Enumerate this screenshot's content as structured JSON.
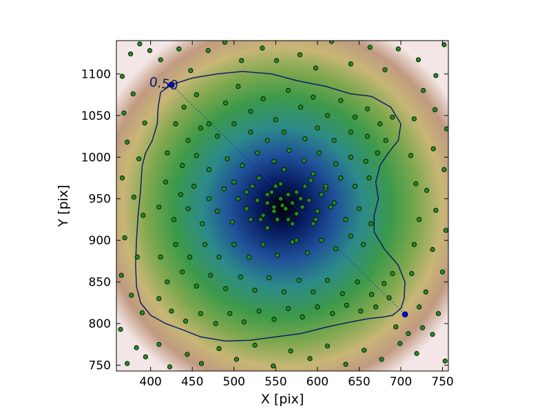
{
  "chart_data": {
    "type": "scatter",
    "xlabel": "X [pix]",
    "ylabel": "Y [pix]",
    "xlim": [
      359,
      757
    ],
    "ylim": [
      743,
      1140
    ],
    "xticks": [
      400,
      450,
      500,
      550,
      600,
      650,
      700,
      750
    ],
    "yticks": [
      750,
      800,
      850,
      900,
      950,
      1000,
      1050,
      1100
    ],
    "grid": false,
    "legend": "none",
    "background_heatmap": {
      "center": [
        558,
        940
      ],
      "colormap": "gist_earth (black-blue-green-tan-white)"
    },
    "contour": {
      "level_label": "0.50",
      "label_position": [
        415,
        1083
      ],
      "color": "#0a1f66",
      "points": [
        [
          425,
          1087
        ],
        [
          450,
          1095
        ],
        [
          480,
          1100
        ],
        [
          510,
          1103
        ],
        [
          545,
          1100
        ],
        [
          575,
          1092
        ],
        [
          610,
          1085
        ],
        [
          640,
          1076
        ],
        [
          665,
          1073
        ],
        [
          688,
          1060
        ],
        [
          700,
          1040
        ],
        [
          697,
          1020
        ],
        [
          685,
          1005
        ],
        [
          675,
          990
        ],
        [
          670,
          970
        ],
        [
          673,
          950
        ],
        [
          668,
          930
        ],
        [
          668,
          910
        ],
        [
          680,
          890
        ],
        [
          697,
          870
        ],
        [
          705,
          850
        ],
        [
          704,
          830
        ],
        [
          700,
          818
        ],
        [
          690,
          810
        ],
        [
          680,
          808
        ],
        [
          662,
          806
        ],
        [
          640,
          802
        ],
        [
          612,
          796
        ],
        [
          580,
          788
        ],
        [
          550,
          784
        ],
        [
          520,
          780
        ],
        [
          490,
          779
        ],
        [
          460,
          784
        ],
        [
          440,
          792
        ],
        [
          418,
          800
        ],
        [
          400,
          810
        ],
        [
          388,
          825
        ],
        [
          383,
          845
        ],
        [
          382,
          870
        ],
        [
          383,
          900
        ],
        [
          385,
          930
        ],
        [
          388,
          960
        ],
        [
          390,
          990
        ],
        [
          394,
          1005
        ],
        [
          402,
          1020
        ],
        [
          408,
          1040
        ],
        [
          409,
          1060
        ],
        [
          412,
          1078
        ],
        [
          425,
          1087
        ]
      ]
    },
    "endpoints": [
      {
        "x": 425,
        "y": 1087
      },
      {
        "x": 705,
        "y": 811
      }
    ],
    "scatter_color": "#228b22",
    "endpoint_color": "#0000ff",
    "scatter_points": [
      [
        366,
        1097
      ],
      [
        376,
        1124
      ],
      [
        387,
        1136
      ],
      [
        399,
        1128
      ],
      [
        412,
        1117
      ],
      [
        434,
        1130
      ],
      [
        448,
        1104
      ],
      [
        469,
        1128
      ],
      [
        489,
        1138
      ],
      [
        509,
        1116
      ],
      [
        534,
        1131
      ],
      [
        551,
        1116
      ],
      [
        579,
        1123
      ],
      [
        598,
        1107
      ],
      [
        617,
        1139
      ],
      [
        640,
        1112
      ],
      [
        663,
        1132
      ],
      [
        681,
        1105
      ],
      [
        697,
        1130
      ],
      [
        721,
        1117
      ],
      [
        742,
        1098
      ],
      [
        752,
        1135
      ],
      [
        368,
        1053
      ],
      [
        379,
        1076
      ],
      [
        393,
        1041
      ],
      [
        372,
        1018
      ],
      [
        386,
        998
      ],
      [
        366,
        975
      ],
      [
        380,
        952
      ],
      [
        391,
        930
      ],
      [
        369,
        903
      ],
      [
        384,
        880
      ],
      [
        365,
        858
      ],
      [
        377,
        834
      ],
      [
        390,
        813
      ],
      [
        364,
        793
      ],
      [
        383,
        771
      ],
      [
        372,
        752
      ],
      [
        394,
        760
      ],
      [
        410,
        775
      ],
      [
        423,
        748
      ],
      [
        444,
        763
      ],
      [
        461,
        752
      ],
      [
        482,
        770
      ],
      [
        503,
        757
      ],
      [
        525,
        774
      ],
      [
        547,
        749
      ],
      [
        568,
        767
      ],
      [
        591,
        758
      ],
      [
        612,
        773
      ],
      [
        634,
        751
      ],
      [
        656,
        768
      ],
      [
        677,
        757
      ],
      [
        699,
        776
      ],
      [
        719,
        764
      ],
      [
        738,
        787
      ],
      [
        753,
        755
      ],
      [
        745,
        812
      ],
      [
        730,
        838
      ],
      [
        750,
        862
      ],
      [
        738,
        889
      ],
      [
        754,
        912
      ],
      [
        742,
        936
      ],
      [
        731,
        960
      ],
      [
        752,
        985
      ],
      [
        739,
        1010
      ],
      [
        755,
        1034
      ],
      [
        741,
        1057
      ],
      [
        727,
        1080
      ],
      [
        716,
        1046
      ],
      [
        712,
        1002
      ],
      [
        718,
        968
      ],
      [
        722,
        925
      ],
      [
        716,
        895
      ],
      [
        713,
        860
      ],
      [
        722,
        820
      ],
      [
        726,
        795
      ],
      [
        709,
        788
      ],
      [
        694,
        796
      ],
      [
        686,
        831
      ],
      [
        690,
        860
      ],
      [
        440,
        1060
      ],
      [
        455,
        1075
      ],
      [
        470,
        1040
      ],
      [
        490,
        1065
      ],
      [
        505,
        1085
      ],
      [
        520,
        1055
      ],
      [
        535,
        1070
      ],
      [
        550,
        1045
      ],
      [
        565,
        1080
      ],
      [
        580,
        1060
      ],
      [
        595,
        1072
      ],
      [
        612,
        1050
      ],
      [
        628,
        1068
      ],
      [
        645,
        1048
      ],
      [
        660,
        1058
      ],
      [
        675,
        1040
      ],
      [
        690,
        1048
      ],
      [
        682,
        1020
      ],
      [
        660,
        1025
      ],
      [
        640,
        1030
      ],
      [
        620,
        1020
      ],
      [
        600,
        1035
      ],
      [
        585,
        1022
      ],
      [
        560,
        1030
      ],
      [
        540,
        1020
      ],
      [
        520,
        1030
      ],
      [
        500,
        1040
      ],
      [
        480,
        1025
      ],
      [
        460,
        1035
      ],
      [
        445,
        1020
      ],
      [
        430,
        1040
      ],
      [
        420,
        1005
      ],
      [
        438,
        990
      ],
      [
        455,
        1002
      ],
      [
        470,
        985
      ],
      [
        492,
        998
      ],
      [
        510,
        990
      ],
      [
        528,
        1005
      ],
      [
        548,
        995
      ],
      [
        566,
        1008
      ],
      [
        584,
        996
      ],
      [
        602,
        1005
      ],
      [
        622,
        992
      ],
      [
        640,
        1000
      ],
      [
        658,
        995
      ],
      [
        672,
        1005
      ],
      [
        662,
        975
      ],
      [
        645,
        965
      ],
      [
        628,
        975
      ],
      [
        610,
        962
      ],
      [
        592,
        972
      ],
      [
        575,
        958
      ],
      [
        556,
        968
      ],
      [
        540,
        955
      ],
      [
        522,
        965
      ],
      [
        505,
        950
      ],
      [
        488,
        962
      ],
      [
        470,
        950
      ],
      [
        452,
        965
      ],
      [
        436,
        955
      ],
      [
        418,
        970
      ],
      [
        410,
        940
      ],
      [
        428,
        925
      ],
      [
        445,
        938
      ],
      [
        462,
        920
      ],
      [
        480,
        935
      ],
      [
        498,
        922
      ],
      [
        515,
        938
      ],
      [
        532,
        925
      ],
      [
        548,
        940
      ],
      [
        565,
        925
      ],
      [
        582,
        940
      ],
      [
        598,
        925
      ],
      [
        616,
        940
      ],
      [
        634,
        925
      ],
      [
        650,
        938
      ],
      [
        664,
        920
      ],
      [
        655,
        895
      ],
      [
        640,
        905
      ],
      [
        622,
        890
      ],
      [
        605,
        900
      ],
      [
        588,
        885
      ],
      [
        570,
        898
      ],
      [
        552,
        882
      ],
      [
        535,
        895
      ],
      [
        518,
        880
      ],
      [
        500,
        895
      ],
      [
        482,
        880
      ],
      [
        465,
        895
      ],
      [
        447,
        880
      ],
      [
        430,
        895
      ],
      [
        412,
        880
      ],
      [
        420,
        850
      ],
      [
        438,
        862
      ],
      [
        455,
        845
      ],
      [
        472,
        858
      ],
      [
        490,
        842
      ],
      [
        508,
        856
      ],
      [
        525,
        840
      ],
      [
        542,
        855
      ],
      [
        560,
        838
      ],
      [
        578,
        852
      ],
      [
        595,
        838
      ],
      [
        612,
        852
      ],
      [
        630,
        836
      ],
      [
        648,
        850
      ],
      [
        665,
        835
      ],
      [
        680,
        848
      ],
      [
        670,
        820
      ],
      [
        652,
        815
      ],
      [
        635,
        822
      ],
      [
        618,
        812
      ],
      [
        600,
        820
      ],
      [
        582,
        808
      ],
      [
        565,
        818
      ],
      [
        548,
        805
      ],
      [
        530,
        815
      ],
      [
        512,
        802
      ],
      [
        495,
        812
      ],
      [
        478,
        800
      ],
      [
        460,
        812
      ],
      [
        442,
        803
      ],
      [
        425,
        815
      ],
      [
        410,
        830
      ],
      [
        540,
        945
      ],
      [
        548,
        935
      ],
      [
        556,
        950
      ],
      [
        562,
        938
      ],
      [
        570,
        945
      ],
      [
        552,
        925
      ],
      [
        565,
        955
      ],
      [
        575,
        932
      ],
      [
        545,
        958
      ],
      [
        580,
        950
      ],
      [
        535,
        930
      ],
      [
        558,
        942
      ],
      [
        590,
        948
      ],
      [
        528,
        948
      ],
      [
        600,
        935
      ],
      [
        515,
        958
      ],
      [
        605,
        955
      ],
      [
        585,
        965
      ],
      [
        550,
        965
      ],
      [
        570,
        920
      ],
      [
        540,
        915
      ],
      [
        595,
        920
      ],
      [
        520,
        925
      ],
      [
        610,
        965
      ],
      [
        500,
        970
      ],
      [
        620,
        945
      ],
      [
        530,
        975
      ],
      [
        595,
        980
      ],
      [
        560,
        985
      ],
      [
        575,
        900
      ]
    ]
  }
}
